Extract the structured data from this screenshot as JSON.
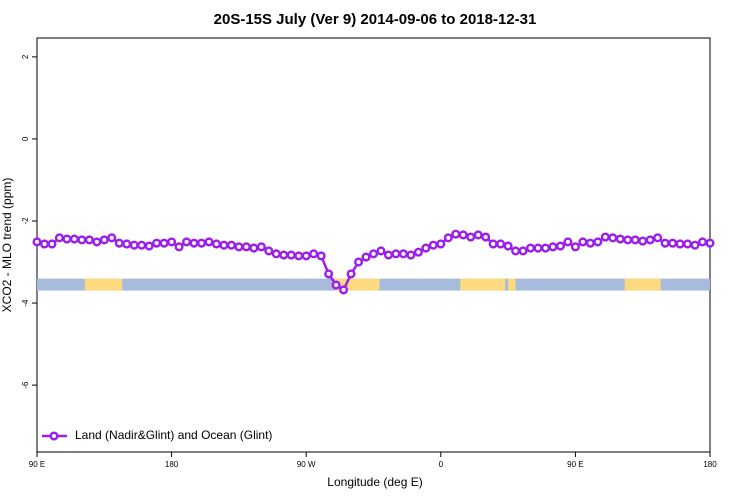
{
  "chart_data": {
    "type": "line",
    "title": "20S-15S July (Ver 9)   2014-09-06 to 2018-12-31",
    "x_label": "Longitude (deg E)",
    "y_label": "XCO2 - MLO trend (ppm)",
    "xlim": [
      90,
      540
    ],
    "ylim": [
      -7.63,
      2.46
    ],
    "xticks": [
      {
        "value": 90,
        "label": "90 E"
      },
      180,
      {
        "value": 270,
        "label": "90 W"
      },
      {
        "value": 360,
        "label": "0"
      },
      {
        "value": 450,
        "label": "90 E"
      },
      {
        "value": 540,
        "label": "180"
      }
    ],
    "yticks": [
      -6,
      -4,
      -2,
      0,
      2
    ],
    "legend_position": "bottomleft",
    "surface_mask": {
      "y": -3.55,
      "ocean_color": "#a7bbdc",
      "land_color": "#fdd97f",
      "land_ranges": [
        [
          122,
          147
        ],
        [
          289,
          319
        ],
        [
          373,
          403
        ],
        [
          405,
          410
        ],
        [
          483,
          507
        ]
      ]
    },
    "x": [
      90,
      95,
      100,
      105,
      110,
      115,
      120,
      125,
      130,
      135,
      140,
      145,
      150,
      155,
      160,
      165,
      170,
      175,
      180,
      185,
      190,
      195,
      200,
      205,
      210,
      215,
      220,
      225,
      230,
      235,
      240,
      245,
      250,
      255,
      260,
      265,
      270,
      275,
      280,
      285,
      290,
      295,
      300,
      305,
      310,
      315,
      320,
      325,
      330,
      335,
      340,
      345,
      350,
      355,
      360,
      365,
      370,
      375,
      380,
      385,
      390,
      395,
      400,
      405,
      410,
      415,
      420,
      425,
      430,
      435,
      440,
      445,
      450,
      455,
      460,
      465,
      470,
      475,
      480,
      485,
      490,
      495,
      500,
      505,
      510,
      515,
      520,
      525,
      530,
      535,
      540
    ],
    "series": [
      {
        "name": "Land (Nadir&Glint) and Ocean (Glint)",
        "color": "#9b1fe8",
        "values": [
          -2.51,
          -2.56,
          -2.56,
          -2.41,
          -2.44,
          -2.44,
          -2.46,
          -2.46,
          -2.51,
          -2.46,
          -2.41,
          -2.54,
          -2.56,
          -2.59,
          -2.59,
          -2.61,
          -2.54,
          -2.54,
          -2.51,
          -2.63,
          -2.51,
          -2.54,
          -2.54,
          -2.51,
          -2.56,
          -2.59,
          -2.59,
          -2.63,
          -2.63,
          -2.66,
          -2.63,
          -2.73,
          -2.8,
          -2.83,
          -2.83,
          -2.85,
          -2.85,
          -2.8,
          -2.85,
          -3.29,
          -3.56,
          -3.68,
          -3.29,
          -3.0,
          -2.88,
          -2.8,
          -2.73,
          -2.83,
          -2.8,
          -2.8,
          -2.83,
          -2.76,
          -2.66,
          -2.59,
          -2.56,
          -2.41,
          -2.32,
          -2.34,
          -2.39,
          -2.34,
          -2.39,
          -2.56,
          -2.56,
          -2.61,
          -2.73,
          -2.73,
          -2.66,
          -2.66,
          -2.66,
          -2.63,
          -2.61,
          -2.51,
          -2.63,
          -2.51,
          -2.54,
          -2.51,
          -2.39,
          -2.41,
          -2.44,
          -2.46,
          -2.46,
          -2.49,
          -2.46,
          -2.41,
          -2.54,
          -2.54,
          -2.56,
          -2.56,
          -2.59,
          -2.51,
          -2.54
        ]
      }
    ]
  }
}
